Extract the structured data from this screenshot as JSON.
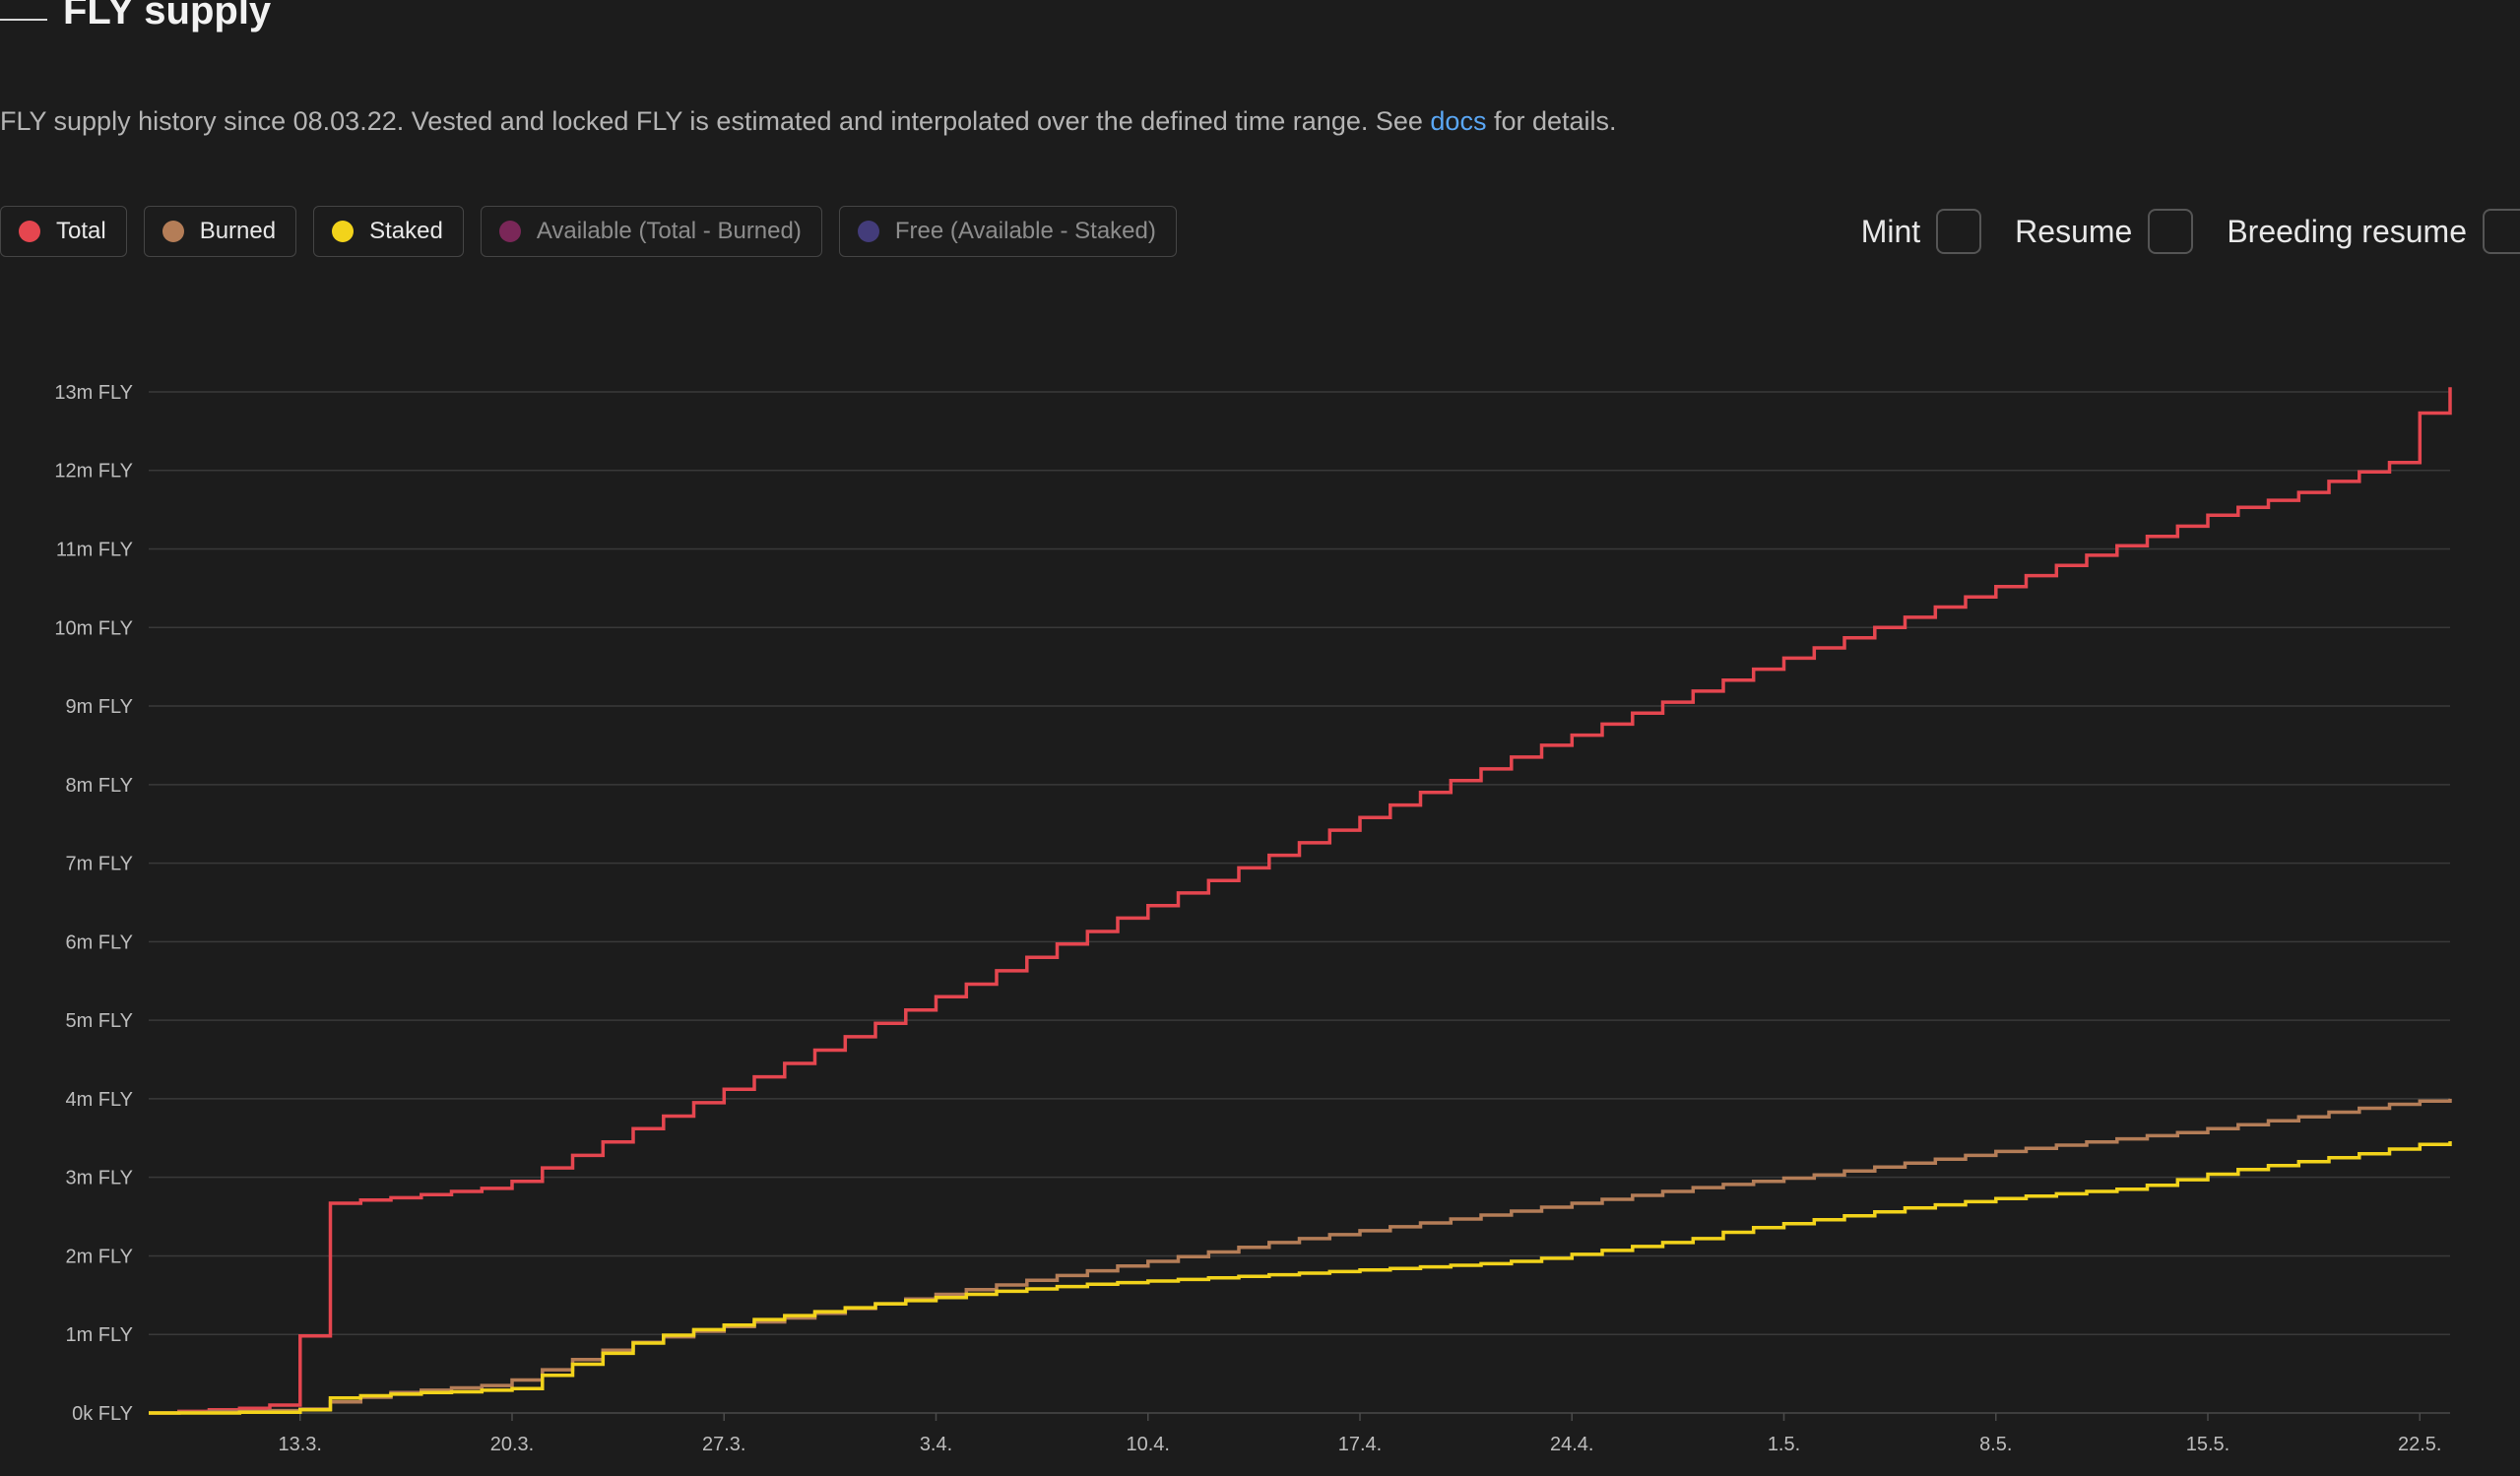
{
  "header": {
    "title": "FLY supply"
  },
  "description": {
    "text_before": "FLY supply history since 08.03.22. Vested and locked FLY is estimated and interpolated over the defined time range. See ",
    "link_text": "docs",
    "text_after": " for details."
  },
  "legend": [
    {
      "label": "Total",
      "color": "#e5464f",
      "active": true
    },
    {
      "label": "Burned",
      "color": "#b47d57",
      "active": true
    },
    {
      "label": "Staked",
      "color": "#f2d31b",
      "active": true
    },
    {
      "label": "Available (Total - Burned)",
      "color": "#7a2758",
      "active": false
    },
    {
      "label": "Free (Available - Staked)",
      "color": "#433c7a",
      "active": false
    }
  ],
  "toggles": [
    {
      "label": "Mint",
      "checked": false
    },
    {
      "label": "Resume",
      "checked": false
    },
    {
      "label": "Breeding resume",
      "checked": false
    }
  ],
  "chart_data": {
    "type": "line",
    "step": true,
    "x_start": "2022-03-08",
    "x_end": "2022-05-23",
    "x_tick_labels": [
      "13.3.",
      "20.3.",
      "27.3.",
      "3.4.",
      "10.4.",
      "17.4.",
      "24.4.",
      "1.5.",
      "8.5.",
      "15.5.",
      "22.5."
    ],
    "x_tick_dates": [
      "2022-03-13",
      "2022-03-20",
      "2022-03-27",
      "2022-04-03",
      "2022-04-10",
      "2022-04-17",
      "2022-04-24",
      "2022-05-01",
      "2022-05-08",
      "2022-05-15",
      "2022-05-22"
    ],
    "y_tick_labels": [
      "0k FLY",
      "1m FLY",
      "2m FLY",
      "3m FLY",
      "4m FLY",
      "5m FLY",
      "6m FLY",
      "7m FLY",
      "8m FLY",
      "9m FLY",
      "10m FLY",
      "11m FLY",
      "12m FLY",
      "13m FLY"
    ],
    "y_unit": "m FLY",
    "ylim": [
      0,
      13.1
    ],
    "grid": "horizontal",
    "series": [
      {
        "name": "Total",
        "color": "#e5464f",
        "points": [
          [
            "2022-03-08",
            0.0
          ],
          [
            "2022-03-09",
            0.02
          ],
          [
            "2022-03-10",
            0.04
          ],
          [
            "2022-03-11",
            0.06
          ],
          [
            "2022-03-12",
            0.1
          ],
          [
            "2022-03-13",
            0.98
          ],
          [
            "2022-03-14",
            2.67
          ],
          [
            "2022-03-15",
            2.71
          ],
          [
            "2022-03-16",
            2.74
          ],
          [
            "2022-03-17",
            2.78
          ],
          [
            "2022-03-18",
            2.82
          ],
          [
            "2022-03-19",
            2.86
          ],
          [
            "2022-03-20",
            2.95
          ],
          [
            "2022-03-21",
            3.12
          ],
          [
            "2022-03-22",
            3.28
          ],
          [
            "2022-03-23",
            3.45
          ],
          [
            "2022-03-24",
            3.62
          ],
          [
            "2022-03-25",
            3.78
          ],
          [
            "2022-03-26",
            3.95
          ],
          [
            "2022-03-27",
            4.12
          ],
          [
            "2022-03-28",
            4.28
          ],
          [
            "2022-03-29",
            4.45
          ],
          [
            "2022-03-30",
            4.62
          ],
          [
            "2022-03-31",
            4.79
          ],
          [
            "2022-04-01",
            4.96
          ],
          [
            "2022-04-02",
            5.13
          ],
          [
            "2022-04-03",
            5.3
          ],
          [
            "2022-04-04",
            5.46
          ],
          [
            "2022-04-05",
            5.63
          ],
          [
            "2022-04-06",
            5.8
          ],
          [
            "2022-04-07",
            5.97
          ],
          [
            "2022-04-08",
            6.13
          ],
          [
            "2022-04-09",
            6.3
          ],
          [
            "2022-04-10",
            6.46
          ],
          [
            "2022-04-11",
            6.62
          ],
          [
            "2022-04-12",
            6.78
          ],
          [
            "2022-04-13",
            6.94
          ],
          [
            "2022-04-14",
            7.1
          ],
          [
            "2022-04-15",
            7.26
          ],
          [
            "2022-04-16",
            7.42
          ],
          [
            "2022-04-17",
            7.58
          ],
          [
            "2022-04-18",
            7.74
          ],
          [
            "2022-04-19",
            7.9
          ],
          [
            "2022-04-20",
            8.05
          ],
          [
            "2022-04-21",
            8.2
          ],
          [
            "2022-04-22",
            8.35
          ],
          [
            "2022-04-23",
            8.5
          ],
          [
            "2022-04-24",
            8.63
          ],
          [
            "2022-04-25",
            8.77
          ],
          [
            "2022-04-26",
            8.91
          ],
          [
            "2022-04-27",
            9.05
          ],
          [
            "2022-04-28",
            9.19
          ],
          [
            "2022-04-29",
            9.33
          ],
          [
            "2022-04-30",
            9.47
          ],
          [
            "2022-05-01",
            9.61
          ],
          [
            "2022-05-02",
            9.74
          ],
          [
            "2022-05-03",
            9.87
          ],
          [
            "2022-05-04",
            10.0
          ],
          [
            "2022-05-05",
            10.13
          ],
          [
            "2022-05-06",
            10.26
          ],
          [
            "2022-05-07",
            10.39
          ],
          [
            "2022-05-08",
            10.52
          ],
          [
            "2022-05-09",
            10.66
          ],
          [
            "2022-05-10",
            10.79
          ],
          [
            "2022-05-11",
            10.92
          ],
          [
            "2022-05-12",
            11.04
          ],
          [
            "2022-05-13",
            11.16
          ],
          [
            "2022-05-14",
            11.29
          ],
          [
            "2022-05-15",
            11.43
          ],
          [
            "2022-05-16",
            11.53
          ],
          [
            "2022-05-17",
            11.62
          ],
          [
            "2022-05-18",
            11.72
          ],
          [
            "2022-05-19",
            11.86
          ],
          [
            "2022-05-20",
            11.98
          ],
          [
            "2022-05-21",
            12.1
          ],
          [
            "2022-05-22",
            12.73
          ],
          [
            "2022-05-23",
            13.06
          ]
        ]
      },
      {
        "name": "Burned",
        "color": "#b47d57",
        "points": [
          [
            "2022-03-08",
            0.0
          ],
          [
            "2022-03-09",
            0.01
          ],
          [
            "2022-03-10",
            0.02
          ],
          [
            "2022-03-11",
            0.02
          ],
          [
            "2022-03-12",
            0.03
          ],
          [
            "2022-03-13",
            0.05
          ],
          [
            "2022-03-14",
            0.14
          ],
          [
            "2022-03-15",
            0.2
          ],
          [
            "2022-03-16",
            0.26
          ],
          [
            "2022-03-17",
            0.29
          ],
          [
            "2022-03-18",
            0.32
          ],
          [
            "2022-03-19",
            0.35
          ],
          [
            "2022-03-20",
            0.42
          ],
          [
            "2022-03-21",
            0.55
          ],
          [
            "2022-03-22",
            0.68
          ],
          [
            "2022-03-23",
            0.8
          ],
          [
            "2022-03-24",
            0.9
          ],
          [
            "2022-03-25",
            0.97
          ],
          [
            "2022-03-26",
            1.04
          ],
          [
            "2022-03-27",
            1.1
          ],
          [
            "2022-03-28",
            1.16
          ],
          [
            "2022-03-29",
            1.21
          ],
          [
            "2022-03-30",
            1.27
          ],
          [
            "2022-03-31",
            1.33
          ],
          [
            "2022-04-01",
            1.39
          ],
          [
            "2022-04-02",
            1.45
          ],
          [
            "2022-04-03",
            1.51
          ],
          [
            "2022-04-04",
            1.57
          ],
          [
            "2022-04-05",
            1.63
          ],
          [
            "2022-04-06",
            1.69
          ],
          [
            "2022-04-07",
            1.75
          ],
          [
            "2022-04-08",
            1.81
          ],
          [
            "2022-04-09",
            1.87
          ],
          [
            "2022-04-10",
            1.93
          ],
          [
            "2022-04-11",
            1.99
          ],
          [
            "2022-04-12",
            2.05
          ],
          [
            "2022-04-13",
            2.11
          ],
          [
            "2022-04-14",
            2.17
          ],
          [
            "2022-04-15",
            2.22
          ],
          [
            "2022-04-16",
            2.27
          ],
          [
            "2022-04-17",
            2.32
          ],
          [
            "2022-04-18",
            2.37
          ],
          [
            "2022-04-19",
            2.42
          ],
          [
            "2022-04-20",
            2.47
          ],
          [
            "2022-04-21",
            2.52
          ],
          [
            "2022-04-22",
            2.57
          ],
          [
            "2022-04-23",
            2.62
          ],
          [
            "2022-04-24",
            2.67
          ],
          [
            "2022-04-25",
            2.72
          ],
          [
            "2022-04-26",
            2.77
          ],
          [
            "2022-04-27",
            2.82
          ],
          [
            "2022-04-28",
            2.87
          ],
          [
            "2022-04-29",
            2.91
          ],
          [
            "2022-04-30",
            2.95
          ],
          [
            "2022-05-01",
            2.99
          ],
          [
            "2022-05-02",
            3.03
          ],
          [
            "2022-05-03",
            3.08
          ],
          [
            "2022-05-04",
            3.13
          ],
          [
            "2022-05-05",
            3.18
          ],
          [
            "2022-05-06",
            3.23
          ],
          [
            "2022-05-07",
            3.28
          ],
          [
            "2022-05-08",
            3.33
          ],
          [
            "2022-05-09",
            3.37
          ],
          [
            "2022-05-10",
            3.41
          ],
          [
            "2022-05-11",
            3.45
          ],
          [
            "2022-05-12",
            3.49
          ],
          [
            "2022-05-13",
            3.53
          ],
          [
            "2022-05-14",
            3.57
          ],
          [
            "2022-05-15",
            3.62
          ],
          [
            "2022-05-16",
            3.67
          ],
          [
            "2022-05-17",
            3.72
          ],
          [
            "2022-05-18",
            3.77
          ],
          [
            "2022-05-19",
            3.83
          ],
          [
            "2022-05-20",
            3.88
          ],
          [
            "2022-05-21",
            3.93
          ],
          [
            "2022-05-22",
            3.97
          ],
          [
            "2022-05-23",
            4.0
          ]
        ]
      },
      {
        "name": "Staked",
        "color": "#f2d31b",
        "points": [
          [
            "2022-03-08",
            0.0
          ],
          [
            "2022-03-09",
            0.0
          ],
          [
            "2022-03-10",
            0.0
          ],
          [
            "2022-03-11",
            0.01
          ],
          [
            "2022-03-12",
            0.01
          ],
          [
            "2022-03-13",
            0.04
          ],
          [
            "2022-03-14",
            0.19
          ],
          [
            "2022-03-15",
            0.22
          ],
          [
            "2022-03-16",
            0.24
          ],
          [
            "2022-03-17",
            0.26
          ],
          [
            "2022-03-18",
            0.27
          ],
          [
            "2022-03-19",
            0.29
          ],
          [
            "2022-03-20",
            0.31
          ],
          [
            "2022-03-21",
            0.48
          ],
          [
            "2022-03-22",
            0.62
          ],
          [
            "2022-03-23",
            0.76
          ],
          [
            "2022-03-24",
            0.89
          ],
          [
            "2022-03-25",
            0.99
          ],
          [
            "2022-03-26",
            1.06
          ],
          [
            "2022-03-27",
            1.12
          ],
          [
            "2022-03-28",
            1.19
          ],
          [
            "2022-03-29",
            1.24
          ],
          [
            "2022-03-30",
            1.29
          ],
          [
            "2022-03-31",
            1.34
          ],
          [
            "2022-04-01",
            1.39
          ],
          [
            "2022-04-02",
            1.43
          ],
          [
            "2022-04-03",
            1.47
          ],
          [
            "2022-04-04",
            1.51
          ],
          [
            "2022-04-05",
            1.55
          ],
          [
            "2022-04-06",
            1.58
          ],
          [
            "2022-04-07",
            1.61
          ],
          [
            "2022-04-08",
            1.64
          ],
          [
            "2022-04-09",
            1.66
          ],
          [
            "2022-04-10",
            1.68
          ],
          [
            "2022-04-11",
            1.7
          ],
          [
            "2022-04-12",
            1.72
          ],
          [
            "2022-04-13",
            1.74
          ],
          [
            "2022-04-14",
            1.76
          ],
          [
            "2022-04-15",
            1.78
          ],
          [
            "2022-04-16",
            1.8
          ],
          [
            "2022-04-17",
            1.82
          ],
          [
            "2022-04-18",
            1.84
          ],
          [
            "2022-04-19",
            1.86
          ],
          [
            "2022-04-20",
            1.88
          ],
          [
            "2022-04-21",
            1.9
          ],
          [
            "2022-04-22",
            1.93
          ],
          [
            "2022-04-23",
            1.97
          ],
          [
            "2022-04-24",
            2.02
          ],
          [
            "2022-04-25",
            2.07
          ],
          [
            "2022-04-26",
            2.12
          ],
          [
            "2022-04-27",
            2.17
          ],
          [
            "2022-04-28",
            2.22
          ],
          [
            "2022-04-29",
            2.3
          ],
          [
            "2022-04-30",
            2.36
          ],
          [
            "2022-05-01",
            2.41
          ],
          [
            "2022-05-02",
            2.46
          ],
          [
            "2022-05-03",
            2.51
          ],
          [
            "2022-05-04",
            2.56
          ],
          [
            "2022-05-05",
            2.61
          ],
          [
            "2022-05-06",
            2.65
          ],
          [
            "2022-05-07",
            2.69
          ],
          [
            "2022-05-08",
            2.73
          ],
          [
            "2022-05-09",
            2.76
          ],
          [
            "2022-05-10",
            2.79
          ],
          [
            "2022-05-11",
            2.82
          ],
          [
            "2022-05-12",
            2.85
          ],
          [
            "2022-05-13",
            2.9
          ],
          [
            "2022-05-14",
            2.97
          ],
          [
            "2022-05-15",
            3.04
          ],
          [
            "2022-05-16",
            3.1
          ],
          [
            "2022-05-17",
            3.15
          ],
          [
            "2022-05-18",
            3.2
          ],
          [
            "2022-05-19",
            3.25
          ],
          [
            "2022-05-20",
            3.3
          ],
          [
            "2022-05-21",
            3.36
          ],
          [
            "2022-05-22",
            3.42
          ],
          [
            "2022-05-23",
            3.46
          ]
        ]
      }
    ]
  }
}
